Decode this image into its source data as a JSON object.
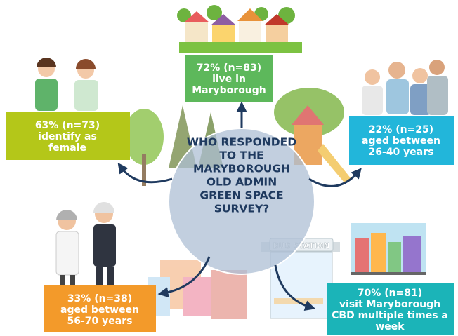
{
  "center": {
    "lines": [
      "WHO RESPONDED",
      "TO  THE",
      "MARYBOROUGH",
      "OLD ADMIN",
      "GREEN SPACE",
      "SURVEY?"
    ]
  },
  "boxes": [
    {
      "lines": [
        "72% (n=83)",
        "live in",
        "Maryborough"
      ]
    },
    {
      "lines": [
        "63% (n=73)",
        "identify as",
        "female"
      ]
    },
    {
      "lines": [
        "22% (n=25)",
        "aged between",
        "26-40 years"
      ]
    },
    {
      "lines": [
        "33% (n=38)",
        "aged between",
        "56-70 years"
      ]
    },
    {
      "lines": [
        "70% (n=81)",
        "visit Maryborough",
        "CBD multiple times a",
        "week"
      ]
    }
  ],
  "sign": "BUS STATION"
}
